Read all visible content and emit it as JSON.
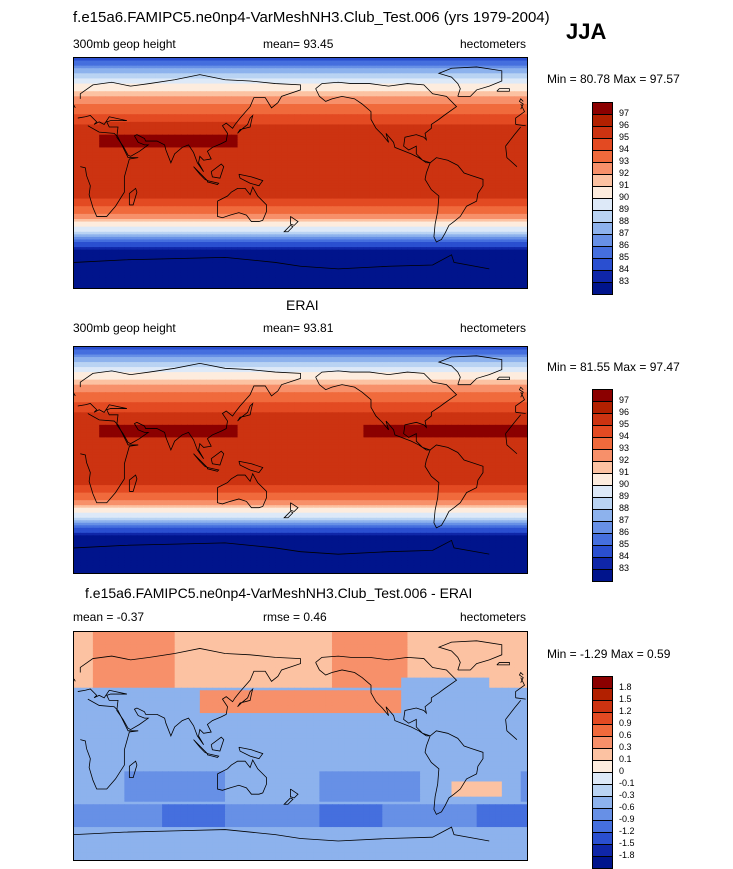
{
  "header": {
    "title": "f.e15a6.FAMIPC5.ne0np4-VarMeshNH3.Club_Test.006 (yrs 1979-2004)",
    "season": "JJA"
  },
  "panels": [
    {
      "id": "model",
      "title": "",
      "left_label": "300mb geop height",
      "center_label": "mean=  93.45",
      "right_label": "hectometers",
      "minmax": "Min =  80.78 Max =  97.57",
      "field": "geop",
      "levels": [
        "97",
        "96",
        "95",
        "94",
        "93",
        "92",
        "91",
        "90",
        "89",
        "88",
        "87",
        "86",
        "85",
        "84",
        "83"
      ],
      "colors": [
        "#8b0000",
        "#b22000",
        "#cc3311",
        "#e34a22",
        "#f06a3c",
        "#f7906a",
        "#fcc2a2",
        "#fdecde",
        "#dde9f8",
        "#b9d3f3",
        "#8db2ed",
        "#6790e6",
        "#456fde",
        "#2a4fd0",
        "#0f26a8",
        "#00148c"
      ]
    },
    {
      "id": "obs",
      "title": "ERAI",
      "left_label": "300mb geop height",
      "center_label": "mean=  93.81",
      "right_label": "hectometers",
      "minmax": "Min =  81.55 Max =  97.47",
      "field": "geop",
      "levels": [
        "97",
        "96",
        "95",
        "94",
        "93",
        "92",
        "91",
        "90",
        "89",
        "88",
        "87",
        "86",
        "85",
        "84",
        "83"
      ],
      "colors": [
        "#8b0000",
        "#b22000",
        "#cc3311",
        "#e34a22",
        "#f06a3c",
        "#f7906a",
        "#fcc2a2",
        "#fdecde",
        "#dde9f8",
        "#b9d3f3",
        "#8db2ed",
        "#6790e6",
        "#456fde",
        "#2a4fd0",
        "#0f26a8",
        "#00148c"
      ]
    },
    {
      "id": "diff",
      "title": "f.e15a6.FAMIPC5.ne0np4-VarMeshNH3.Club_Test.006 - ERAI",
      "left_label": "mean =  -0.37",
      "center_label": "rmse =   0.46",
      "right_label": "hectometers",
      "minmax": "Min =  -1.29 Max =   0.59",
      "field": "diff",
      "levels": [
        "1.8",
        "1.5",
        "1.2",
        "0.9",
        "0.6",
        "0.3",
        "0.1",
        "0",
        "-0.1",
        "-0.3",
        "-0.6",
        "-0.9",
        "-1.2",
        "-1.5",
        "-1.8"
      ],
      "colors": [
        "#8b0000",
        "#b22000",
        "#cc3311",
        "#e34a22",
        "#f06a3c",
        "#f7906a",
        "#fcc2a2",
        "#fdecde",
        "#dde9f8",
        "#b9d3f3",
        "#8db2ed",
        "#6790e6",
        "#456fde",
        "#2a4fd0",
        "#0f26a8",
        "#00148c"
      ]
    }
  ]
}
